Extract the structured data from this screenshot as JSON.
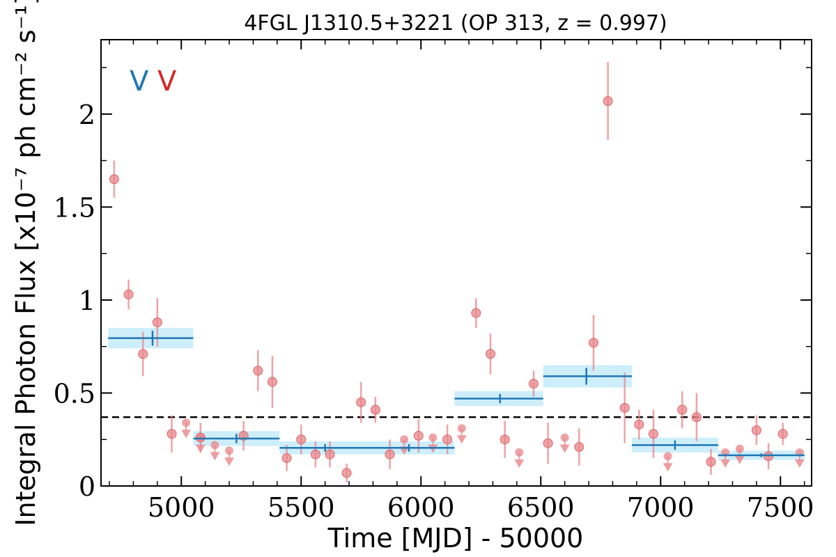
{
  "chart_data": {
    "type": "scatter",
    "title": "4FGL J1310.5+3221 (OP 313, z = 0.997)",
    "xlabel": "Time [MJD] - 50000",
    "ylabel": "Integral Photon Flux [x10⁻⁷ ph cm⁻² s⁻¹]",
    "xlim": [
      4665,
      7630
    ],
    "ylim": [
      0,
      2.4
    ],
    "x_ticks": [
      5000,
      5500,
      6000,
      6500,
      7000,
      7500
    ],
    "x_tick_labels": [
      "5000",
      "5500",
      "6000",
      "6500",
      "7000",
      "7500"
    ],
    "y_ticks": [
      0,
      0.5,
      1,
      1.5,
      2
    ],
    "y_tick_labels": [
      "0",
      "0.5",
      "1",
      "1.5",
      "2"
    ],
    "reference_level": 0.37,
    "markers": [
      {
        "label": "V",
        "color": "#1f77b4"
      },
      {
        "label": "V",
        "color": "#d62728"
      }
    ],
    "colors": {
      "fine": "#e8868a",
      "coarse": "#1f77b4",
      "band": "#cdeefb",
      "marker_red": "#d62728"
    },
    "series": [
      {
        "points": [
          {
            "x": 4720,
            "y": 1.65,
            "err": 0.1
          },
          {
            "x": 4780,
            "y": 1.03,
            "err": 0.08
          },
          {
            "x": 4840,
            "y": 0.71,
            "err": 0.12
          },
          {
            "x": 4900,
            "y": 0.88,
            "err": 0.13
          },
          {
            "x": 4960,
            "y": 0.28,
            "err": 0.1
          },
          {
            "x": 5080,
            "y": 0.26,
            "err": 0.08
          },
          {
            "x": 5260,
            "y": 0.27,
            "err": 0.08
          },
          {
            "x": 5320,
            "y": 0.62,
            "err": 0.11
          },
          {
            "x": 5380,
            "y": 0.56,
            "err": 0.14
          },
          {
            "x": 5440,
            "y": 0.15,
            "err": 0.07
          },
          {
            "x": 5500,
            "y": 0.25,
            "err": 0.08
          },
          {
            "x": 5560,
            "y": 0.17,
            "err": 0.07
          },
          {
            "x": 5620,
            "y": 0.17,
            "err": 0.07
          },
          {
            "x": 5690,
            "y": 0.07,
            "err": 0.05
          },
          {
            "x": 5750,
            "y": 0.45,
            "err": 0.11
          },
          {
            "x": 5810,
            "y": 0.41,
            "err": 0.07
          },
          {
            "x": 5870,
            "y": 0.17,
            "err": 0.08
          },
          {
            "x": 5990,
            "y": 0.27,
            "err": 0.09
          },
          {
            "x": 6110,
            "y": 0.25,
            "err": 0.08
          },
          {
            "x": 6230,
            "y": 0.93,
            "err": 0.08
          },
          {
            "x": 6290,
            "y": 0.71,
            "err": 0.11
          },
          {
            "x": 6350,
            "y": 0.25,
            "err": 0.1
          },
          {
            "x": 6470,
            "y": 0.55,
            "err": 0.07
          },
          {
            "x": 6530,
            "y": 0.23,
            "err": 0.11
          },
          {
            "x": 6660,
            "y": 0.21,
            "err": 0.1
          },
          {
            "x": 6720,
            "y": 0.77,
            "err": 0.15
          },
          {
            "x": 6780,
            "y": 2.07,
            "err": 0.21
          },
          {
            "x": 6850,
            "y": 0.42,
            "err": 0.19
          },
          {
            "x": 6910,
            "y": 0.33,
            "err": 0.08
          },
          {
            "x": 6970,
            "y": 0.28,
            "err": 0.13
          },
          {
            "x": 7090,
            "y": 0.41,
            "err": 0.1
          },
          {
            "x": 7150,
            "y": 0.37,
            "err": 0.13
          },
          {
            "x": 7210,
            "y": 0.13,
            "err": 0.07
          },
          {
            "x": 7400,
            "y": 0.3,
            "err": 0.08
          },
          {
            "x": 7450,
            "y": 0.16,
            "err": 0.07
          },
          {
            "x": 7510,
            "y": 0.28,
            "err": 0.06
          }
        ],
        "upper_limits": [
          {
            "x": 5020,
            "y": 0.34
          },
          {
            "x": 5080,
            "y": 0.26
          },
          {
            "x": 5140,
            "y": 0.22
          },
          {
            "x": 5200,
            "y": 0.19
          },
          {
            "x": 5930,
            "y": 0.25
          },
          {
            "x": 6050,
            "y": 0.26
          },
          {
            "x": 6170,
            "y": 0.31
          },
          {
            "x": 6410,
            "y": 0.18
          },
          {
            "x": 6600,
            "y": 0.26
          },
          {
            "x": 7030,
            "y": 0.16
          },
          {
            "x": 7270,
            "y": 0.18
          },
          {
            "x": 7330,
            "y": 0.2
          },
          {
            "x": 7580,
            "y": 0.18
          }
        ]
      },
      {
        "bins": [
          {
            "x_start": 4695,
            "x_end": 5050,
            "x_center": 4880,
            "y": 0.795,
            "err": 0.055
          },
          {
            "x_start": 5050,
            "x_end": 5410,
            "x_center": 5230,
            "y": 0.255,
            "err": 0.04
          },
          {
            "x_start": 5410,
            "x_end": 5780,
            "x_center": 5600,
            "y": 0.205,
            "err": 0.035
          },
          {
            "x_start": 5780,
            "x_end": 6140,
            "x_center": 5950,
            "y": 0.205,
            "err": 0.035
          },
          {
            "x_start": 6140,
            "x_end": 6510,
            "x_center": 6330,
            "y": 0.47,
            "err": 0.04
          },
          {
            "x_start": 6510,
            "x_end": 6880,
            "x_center": 6690,
            "y": 0.59,
            "err": 0.06
          },
          {
            "x_start": 6880,
            "x_end": 7240,
            "x_center": 7060,
            "y": 0.22,
            "err": 0.04
          },
          {
            "x_start": 7240,
            "x_end": 7600,
            "x_center": 7420,
            "y": 0.165,
            "err": 0.025
          }
        ]
      }
    ]
  }
}
